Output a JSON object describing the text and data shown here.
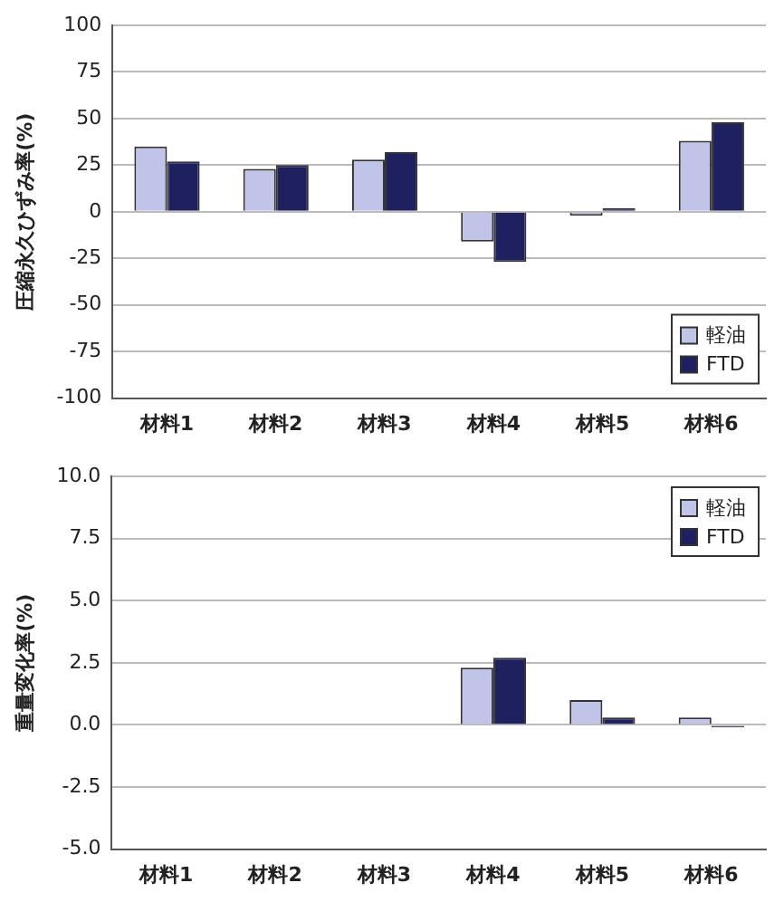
{
  "chart_data": [
    {
      "type": "bar",
      "ylabel": "圧縮永久ひずみ率(%)",
      "categories": [
        "材料1",
        "材料2",
        "材料3",
        "材料4",
        "材料5",
        "材料6"
      ],
      "series": [
        {
          "name": "軽油",
          "color": "#c0c4e8",
          "values": [
            35,
            23,
            28,
            -16,
            -2,
            38
          ]
        },
        {
          "name": "FTD",
          "color": "#1f2060",
          "values": [
            27,
            25,
            32,
            -27,
            2,
            48
          ]
        }
      ],
      "ylim": [
        -100,
        100
      ],
      "yticks": [
        -100,
        -75,
        -50,
        -25,
        0,
        25,
        50,
        75,
        100
      ],
      "grid": "y",
      "legend": "bottom right"
    },
    {
      "type": "bar",
      "ylabel": "重量変化率(%)",
      "categories": [
        "材料1",
        "材料2",
        "材料3",
        "材料4",
        "材料5",
        "材料6"
      ],
      "series": [
        {
          "name": "軽油",
          "color": "#c0c4e8",
          "values": [
            null,
            null,
            null,
            2.3,
            1.0,
            0.3
          ]
        },
        {
          "name": "FTD",
          "color": "#1f2060",
          "values": [
            null,
            null,
            null,
            2.7,
            0.3,
            -0.1
          ]
        }
      ],
      "ylim": [
        -5,
        10
      ],
      "yticks": [
        {
          "value": -5,
          "label": "-5.0"
        },
        {
          "value": -2.5,
          "label": "-2.5"
        },
        {
          "value": 0,
          "label": "0.0"
        },
        {
          "value": 2.5,
          "label": "2.5"
        },
        {
          "value": 5,
          "label": "5.0"
        },
        {
          "value": 7.5,
          "label": "7.5"
        },
        {
          "value": 10,
          "label": "10.0"
        }
      ],
      "grid": "y",
      "legend": "top right"
    }
  ]
}
